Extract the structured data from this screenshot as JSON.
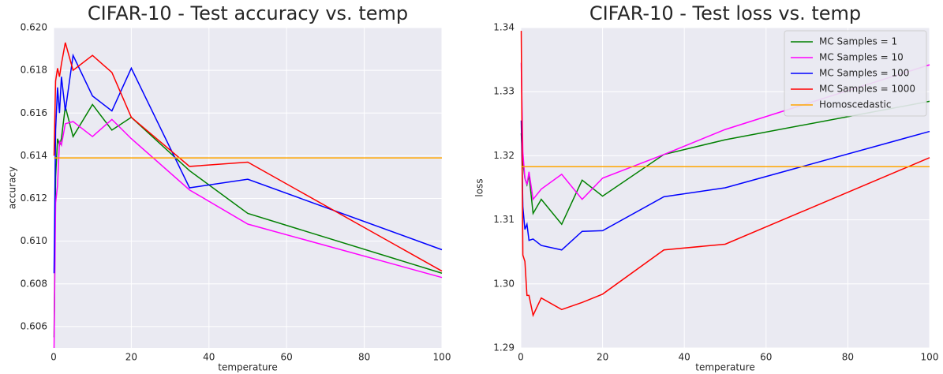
{
  "chart_data": [
    {
      "type": "line",
      "title": "CIFAR-10 - Test accuracy vs. temp",
      "x_label": "temperature",
      "y_label": "accuracy",
      "x": [
        0.1,
        0.5,
        1,
        1.5,
        2,
        3,
        5,
        10,
        15,
        20,
        35,
        50,
        100
      ],
      "series": [
        {
          "name": "MC Samples = 1",
          "color": "#008000",
          "values": [
            0.6055,
            0.613,
            0.6148,
            0.6145,
            0.6148,
            0.6163,
            0.6149,
            0.6164,
            0.6152,
            0.6158,
            0.6133,
            0.6113,
            0.6085
          ]
        },
        {
          "name": "MC Samples = 10",
          "color": "#ff00ff",
          "values": [
            0.605,
            0.6118,
            0.6126,
            0.6147,
            0.6145,
            0.6155,
            0.6156,
            0.6149,
            0.6157,
            0.6148,
            0.6124,
            0.6108,
            0.6083
          ]
        },
        {
          "name": "MC Samples = 100",
          "color": "#0000ff",
          "values": [
            0.6085,
            0.6152,
            0.6172,
            0.616,
            0.6177,
            0.6161,
            0.6187,
            0.6168,
            0.6161,
            0.6181,
            0.6125,
            0.6129,
            0.6096
          ]
        },
        {
          "name": "MC Samples = 1000",
          "color": "#ff0000",
          "values": [
            0.614,
            0.6175,
            0.6181,
            0.6177,
            0.6183,
            0.6193,
            0.618,
            0.6187,
            0.6179,
            0.6158,
            0.6135,
            0.6137,
            0.6086
          ]
        },
        {
          "name": "Homoscedastic",
          "color": "#ffa500",
          "values": [
            0.6139,
            0.6139,
            0.6139,
            0.6139,
            0.6139,
            0.6139,
            0.6139,
            0.6139,
            0.6139,
            0.6139,
            0.6139,
            0.6139,
            0.6139
          ]
        }
      ],
      "xlim": [
        0,
        100
      ],
      "xticks": [
        0,
        20,
        40,
        60,
        80,
        100
      ],
      "ylim": [
        0.605,
        0.62
      ],
      "yticks": [
        0.606,
        0.608,
        {
          "value": 0.61,
          "label": "0.610"
        },
        0.612,
        0.614,
        0.616,
        0.618,
        {
          "value": 0.62,
          "label": "0.620"
        }
      ],
      "grid": true
    },
    {
      "type": "line",
      "title": "CIFAR-10 - Test loss vs. temp",
      "x_label": "temperature",
      "y_label": "loss",
      "x": [
        0.1,
        0.5,
        1,
        1.5,
        2,
        3,
        5,
        10,
        15,
        20,
        35,
        50,
        100
      ],
      "series": [
        {
          "name": "MC Samples = 1",
          "color": "#008000",
          "values": [
            1.3235,
            1.319,
            1.3165,
            1.3155,
            1.317,
            1.311,
            1.3132,
            1.3093,
            1.3162,
            1.3137,
            1.3202,
            1.3225,
            1.3285
          ]
        },
        {
          "name": "MC Samples = 10",
          "color": "#ff00ff",
          "values": [
            1.3345,
            1.3205,
            1.3165,
            1.3155,
            1.3175,
            1.3132,
            1.3148,
            1.3171,
            1.3132,
            1.3165,
            1.3202,
            1.3241,
            1.3342
          ]
        },
        {
          "name": "MC Samples = 100",
          "color": "#0000ff",
          "values": [
            1.3255,
            1.312,
            1.3085,
            1.3093,
            1.3068,
            1.307,
            1.306,
            1.3053,
            1.3082,
            1.3083,
            1.3136,
            1.315,
            1.3238
          ]
        },
        {
          "name": "MC Samples = 1000",
          "color": "#ff0000",
          "values": [
            1.3395,
            1.3045,
            1.3035,
            1.2982,
            1.2982,
            1.2951,
            1.2978,
            1.296,
            1.2971,
            1.2984,
            1.3053,
            1.3062,
            1.3197
          ]
        },
        {
          "name": "Homoscedastic",
          "color": "#ffa500",
          "values": [
            1.3183,
            1.3183,
            1.3183,
            1.3183,
            1.3183,
            1.3183,
            1.3183,
            1.3183,
            1.3183,
            1.3183,
            1.3183,
            1.3183,
            1.3183
          ]
        }
      ],
      "xlim": [
        0,
        100
      ],
      "xticks": [
        0,
        20,
        40,
        60,
        80,
        100
      ],
      "ylim": [
        1.29,
        1.34
      ],
      "yticks": [
        1.29,
        {
          "value": 1.3,
          "label": "1.30"
        },
        1.31,
        1.32,
        1.33,
        1.34
      ],
      "grid": true,
      "legend": "upper right"
    }
  ]
}
